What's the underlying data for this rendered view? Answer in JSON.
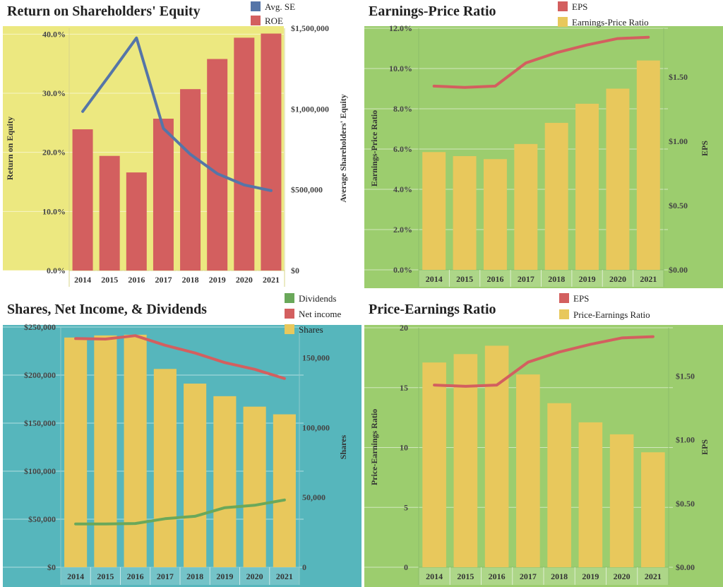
{
  "colors": {
    "red": "#d35f5f",
    "blue": "#5575a8",
    "yellow": "#e8c85c",
    "green": "#6aa85a",
    "bg_yellow": "#ece880",
    "bg_green": "#9ccd6e",
    "bg_teal": "#56b6bc",
    "axis_yellow": "#d7d58a",
    "axis_green": "#8dbd6a",
    "axis_teal": "#8fcbcc"
  },
  "chart_data": [
    {
      "id": "roe",
      "type": "bar+line",
      "title": "Return on Shareholders' Equity",
      "categories": [
        "2014",
        "2015",
        "2016",
        "2017",
        "2018",
        "2019",
        "2020",
        "2021"
      ],
      "series": [
        {
          "name": "ROE",
          "kind": "bar",
          "axis": "left",
          "color": "#d35f5f",
          "values": [
            0.239,
            0.194,
            0.166,
            0.257,
            0.307,
            0.358,
            0.394,
            0.401
          ]
        },
        {
          "name": "Avg. SE",
          "kind": "line",
          "axis": "right",
          "color": "#5575a8",
          "values": [
            985000,
            1210000,
            1440000,
            880000,
            720000,
            600000,
            530000,
            495000
          ]
        }
      ],
      "ylabel_left": "Return on Equity",
      "ylabel_right": "Average Shareholders' Equity",
      "ylim_left": [
        0,
        0.41
      ],
      "ylim_right": [
        0,
        1500000
      ],
      "yticks_left": [
        "0.0%",
        "10.0%",
        "20.0%",
        "30.0%",
        "40.0%"
      ],
      "yticks_left_values": [
        0,
        0.1,
        0.2,
        0.3,
        0.4
      ],
      "yticks_right": [
        "$0",
        "$500,000",
        "$1,000,000",
        "$1,500,000"
      ],
      "yticks_right_values": [
        0,
        500000,
        1000000,
        1500000
      ],
      "legend": [
        "Avg. SE",
        "ROE"
      ]
    },
    {
      "id": "ep",
      "type": "bar+line",
      "title": "Earnings-Price Ratio",
      "categories": [
        "2014",
        "2015",
        "2016",
        "2017",
        "2018",
        "2019",
        "2020",
        "2021"
      ],
      "series": [
        {
          "name": "Earnings-Price Ratio",
          "kind": "bar",
          "axis": "left",
          "color": "#e8c85c",
          "values": [
            0.0585,
            0.0565,
            0.055,
            0.0625,
            0.073,
            0.0825,
            0.09,
            0.104
          ]
        },
        {
          "name": "EPS",
          "kind": "line",
          "axis": "right",
          "color": "#d35f5f",
          "values": [
            1.43,
            1.42,
            1.43,
            1.61,
            1.69,
            1.75,
            1.8,
            1.81
          ]
        }
      ],
      "ylabel_left": "Earnings-Price Ratio",
      "ylabel_right": "EPS",
      "ylim_left": [
        0,
        0.12
      ],
      "ylim_right": [
        0,
        1.88
      ],
      "yticks_left": [
        "0.0%",
        "2.0%",
        "4.0%",
        "6.0%",
        "8.0%",
        "10.0%",
        "12.0%"
      ],
      "yticks_left_values": [
        0,
        0.02,
        0.04,
        0.06,
        0.08,
        0.1,
        0.12
      ],
      "yticks_right": [
        "$0.00",
        "$0.50",
        "$1.00",
        "$1.50"
      ],
      "yticks_right_values": [
        0,
        0.5,
        1.0,
        1.5
      ],
      "legend": [
        "EPS",
        "Earnings-Price Ratio"
      ]
    },
    {
      "id": "shares",
      "type": "bar+line",
      "title": "Shares, Net Income, & Dividends",
      "categories": [
        "2014",
        "2015",
        "2016",
        "2017",
        "2018",
        "2019",
        "2020",
        "2021"
      ],
      "series": [
        {
          "name": "Shares",
          "kind": "bar",
          "axis": "right",
          "color": "#e8c85c",
          "values": [
            164500,
            166000,
            166500,
            142000,
            131500,
            122500,
            115000,
            109500
          ]
        },
        {
          "name": "Net income",
          "kind": "line",
          "axis": "left",
          "color": "#d35f5f",
          "values": [
            238000,
            237500,
            241000,
            231000,
            223000,
            213000,
            206000,
            196500
          ]
        },
        {
          "name": "Dividends",
          "kind": "line",
          "axis": "left",
          "color": "#6aa85a",
          "values": [
            45000,
            45000,
            45500,
            50500,
            53000,
            62000,
            64500,
            70000
          ]
        }
      ],
      "ylabel_left": "",
      "ylabel_right": "Shares",
      "ylim_left": [
        0,
        250000
      ],
      "ylim_right": [
        0,
        172000
      ],
      "yticks_left": [
        "$0",
        "$50,000",
        "$100,000",
        "$150,000",
        "$200,000",
        "$250,000"
      ],
      "yticks_left_values": [
        0,
        50000,
        100000,
        150000,
        200000,
        250000
      ],
      "yticks_right": [
        "0",
        "50,000",
        "100,000",
        "150,000"
      ],
      "yticks_right_values": [
        0,
        50000,
        100000,
        150000
      ],
      "legend": [
        "Dividends",
        "Net income",
        "Shares"
      ]
    },
    {
      "id": "pe",
      "type": "bar+line",
      "title": "Price-Earnings Ratio",
      "categories": [
        "2014",
        "2015",
        "2016",
        "2017",
        "2018",
        "2019",
        "2020",
        "2021"
      ],
      "series": [
        {
          "name": "Price-Earnings Ratio",
          "kind": "bar",
          "axis": "left",
          "color": "#e8c85c",
          "values": [
            17.1,
            17.8,
            18.5,
            16.1,
            13.7,
            12.1,
            11.1,
            9.6
          ]
        },
        {
          "name": "EPS",
          "kind": "line",
          "axis": "right",
          "color": "#d35f5f",
          "values": [
            1.43,
            1.42,
            1.43,
            1.61,
            1.69,
            1.75,
            1.8,
            1.81
          ]
        }
      ],
      "ylabel_left": "Price-Earnings Ratio",
      "ylabel_right": "EPS",
      "ylim_left": [
        0,
        20
      ],
      "ylim_right": [
        0,
        1.88
      ],
      "yticks_left": [
        "0",
        "5",
        "10",
        "15",
        "20"
      ],
      "yticks_left_values": [
        0,
        5,
        10,
        15,
        20
      ],
      "yticks_right": [
        "$0.00",
        "$0.50",
        "$1.00",
        "$1.50"
      ],
      "yticks_right_values": [
        0,
        0.5,
        1.0,
        1.5
      ],
      "legend": [
        "EPS",
        "Price-Earnings Ratio"
      ]
    }
  ]
}
